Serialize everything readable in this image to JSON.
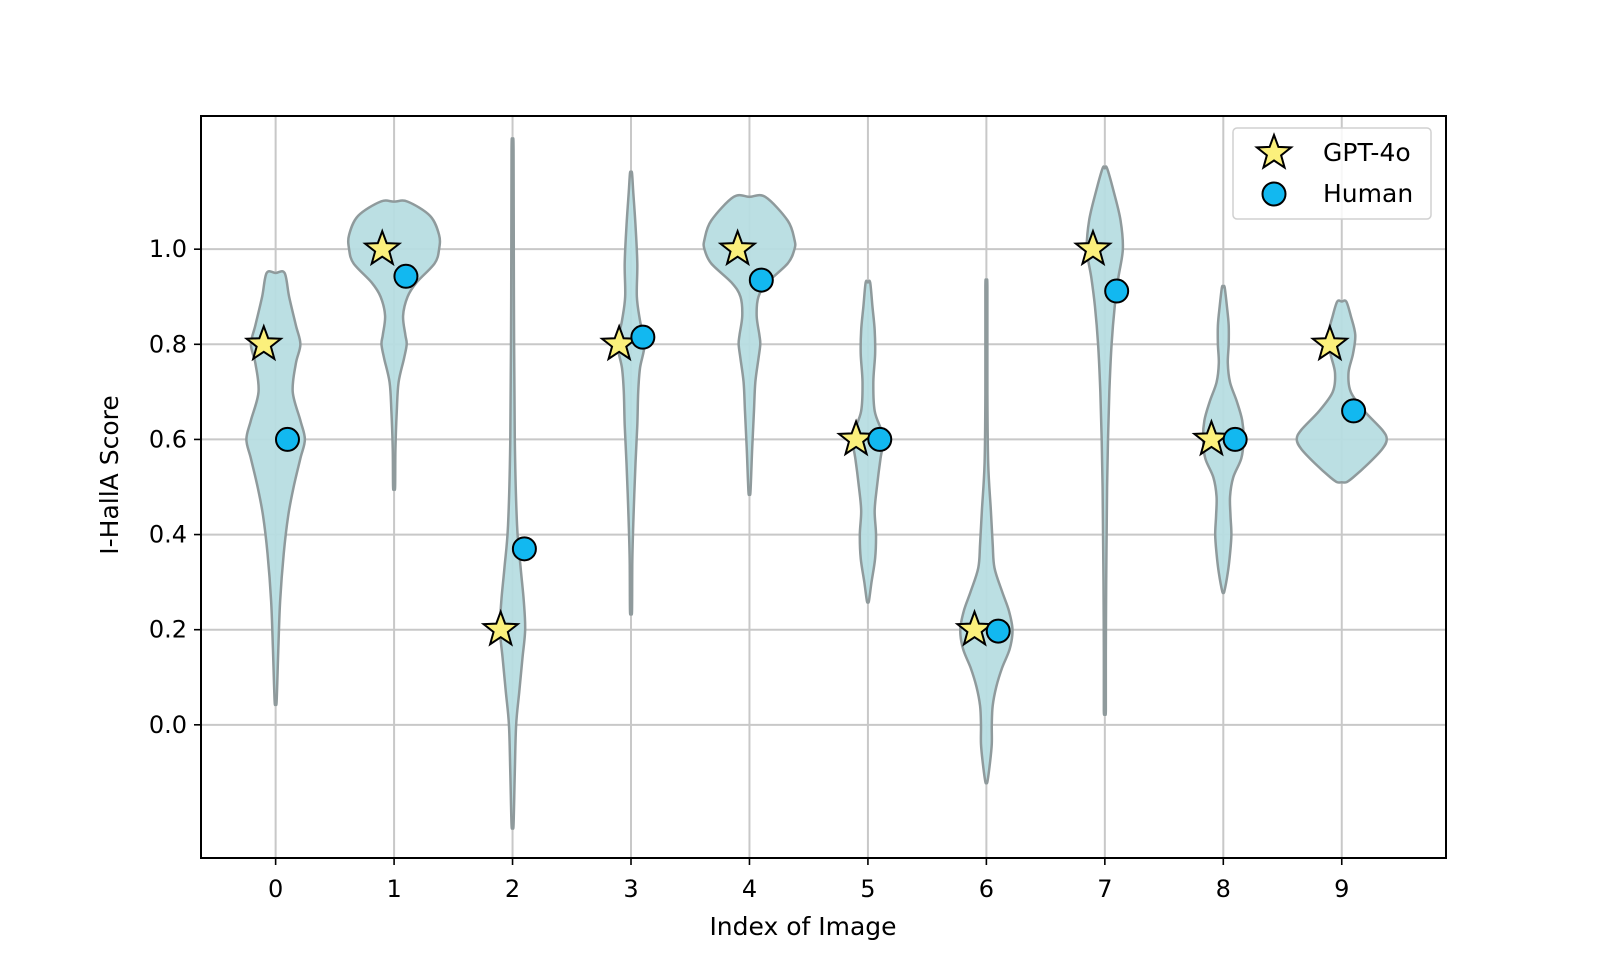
{
  "chart_data": {
    "type": "violin",
    "xlabel": "Index of Image",
    "ylabel": "I-HallA Score",
    "categories": [
      "0",
      "1",
      "2",
      "3",
      "4",
      "5",
      "6",
      "7",
      "8",
      "9"
    ],
    "x_ticks": [
      "0",
      "1",
      "2",
      "3",
      "4",
      "5",
      "6",
      "7",
      "8",
      "9"
    ],
    "y_ticks": [
      "0.0",
      "0.2",
      "0.4",
      "0.6",
      "0.8",
      "1.0"
    ],
    "y_tick_values": [
      0.0,
      0.2,
      0.4,
      0.6,
      0.8,
      1.0
    ],
    "xlim": [
      -0.63,
      9.88
    ],
    "ylim": [
      -0.28,
      1.28
    ],
    "grid": true,
    "legend_position": "top-right",
    "colors": {
      "violin_fill": "#b7dde1",
      "violin_edge": "#8f9a9c",
      "gpt_marker": "#fbf07c",
      "human_marker": "#12b8f0",
      "grid": "#c8c8c8"
    },
    "series": [
      {
        "name": "GPT-4o",
        "marker": "star",
        "values": [
          0.8,
          1.0,
          0.2,
          0.8,
          1.0,
          0.6,
          0.2,
          1.0,
          0.6,
          0.8
        ]
      },
      {
        "name": "Human",
        "marker": "circle",
        "values": [
          0.6,
          0.943,
          0.37,
          0.815,
          0.935,
          0.6,
          0.197,
          0.912,
          0.6,
          0.66
        ]
      }
    ],
    "distributions": [
      {
        "index": 0,
        "ymin": 0.05,
        "ymax": 0.95,
        "profile": [
          [
            0.95,
            0.2
          ],
          [
            0.9,
            0.3
          ],
          [
            0.84,
            0.45
          ],
          [
            0.8,
            0.55
          ],
          [
            0.76,
            0.45
          ],
          [
            0.7,
            0.38
          ],
          [
            0.64,
            0.55
          ],
          [
            0.6,
            0.65
          ],
          [
            0.56,
            0.55
          ],
          [
            0.5,
            0.4
          ],
          [
            0.44,
            0.28
          ],
          [
            0.36,
            0.18
          ],
          [
            0.26,
            0.1
          ],
          [
            0.16,
            0.06
          ],
          [
            0.05,
            0.02
          ]
        ]
      },
      {
        "index": 1,
        "ymin": 0.5,
        "ymax": 1.1,
        "profile": [
          [
            1.1,
            0.3
          ],
          [
            1.07,
            0.8
          ],
          [
            1.03,
            1.0
          ],
          [
            1.0,
            1.0
          ],
          [
            0.97,
            0.9
          ],
          [
            0.93,
            0.5
          ],
          [
            0.9,
            0.3
          ],
          [
            0.86,
            0.2
          ],
          [
            0.82,
            0.25
          ],
          [
            0.8,
            0.28
          ],
          [
            0.77,
            0.22
          ],
          [
            0.72,
            0.1
          ],
          [
            0.66,
            0.06
          ],
          [
            0.58,
            0.03
          ],
          [
            0.5,
            0.02
          ]
        ]
      },
      {
        "index": 2,
        "ymin": -0.21,
        "ymax": 1.21,
        "profile": [
          [
            1.21,
            0.02
          ],
          [
            0.9,
            0.03
          ],
          [
            0.6,
            0.05
          ],
          [
            0.42,
            0.1
          ],
          [
            0.33,
            0.18
          ],
          [
            0.26,
            0.25
          ],
          [
            0.2,
            0.28
          ],
          [
            0.14,
            0.22
          ],
          [
            0.07,
            0.15
          ],
          [
            0.0,
            0.08
          ],
          [
            -0.1,
            0.05
          ],
          [
            -0.21,
            0.02
          ]
        ]
      },
      {
        "index": 3,
        "ymin": 0.24,
        "ymax": 1.16,
        "profile": [
          [
            1.16,
            0.02
          ],
          [
            1.12,
            0.05
          ],
          [
            1.05,
            0.1
          ],
          [
            0.97,
            0.14
          ],
          [
            0.9,
            0.13
          ],
          [
            0.85,
            0.2
          ],
          [
            0.8,
            0.3
          ],
          [
            0.75,
            0.2
          ],
          [
            0.7,
            0.16
          ],
          [
            0.63,
            0.14
          ],
          [
            0.55,
            0.1
          ],
          [
            0.45,
            0.06
          ],
          [
            0.35,
            0.03
          ],
          [
            0.24,
            0.01
          ]
        ]
      },
      {
        "index": 4,
        "ymin": 0.49,
        "ymax": 1.11,
        "profile": [
          [
            1.11,
            0.35
          ],
          [
            1.06,
            0.85
          ],
          [
            1.02,
            1.0
          ],
          [
            1.0,
            1.0
          ],
          [
            0.97,
            0.85
          ],
          [
            0.93,
            0.4
          ],
          [
            0.9,
            0.2
          ],
          [
            0.86,
            0.16
          ],
          [
            0.82,
            0.22
          ],
          [
            0.8,
            0.24
          ],
          [
            0.77,
            0.2
          ],
          [
            0.72,
            0.13
          ],
          [
            0.66,
            0.1
          ],
          [
            0.58,
            0.06
          ],
          [
            0.49,
            0.02
          ]
        ]
      },
      {
        "index": 5,
        "ymin": 0.26,
        "ymax": 0.93,
        "profile": [
          [
            0.93,
            0.05
          ],
          [
            0.88,
            0.1
          ],
          [
            0.83,
            0.15
          ],
          [
            0.78,
            0.16
          ],
          [
            0.72,
            0.12
          ],
          [
            0.66,
            0.15
          ],
          [
            0.62,
            0.3
          ],
          [
            0.6,
            0.35
          ],
          [
            0.56,
            0.28
          ],
          [
            0.5,
            0.2
          ],
          [
            0.45,
            0.15
          ],
          [
            0.4,
            0.18
          ],
          [
            0.35,
            0.16
          ],
          [
            0.3,
            0.08
          ],
          [
            0.26,
            0.02
          ]
        ]
      },
      {
        "index": 6,
        "ymin": -0.12,
        "ymax": 0.92,
        "profile": [
          [
            0.92,
            0.01
          ],
          [
            0.7,
            0.02
          ],
          [
            0.55,
            0.04
          ],
          [
            0.45,
            0.1
          ],
          [
            0.38,
            0.14
          ],
          [
            0.33,
            0.18
          ],
          [
            0.28,
            0.35
          ],
          [
            0.24,
            0.5
          ],
          [
            0.2,
            0.58
          ],
          [
            0.16,
            0.52
          ],
          [
            0.12,
            0.35
          ],
          [
            0.08,
            0.22
          ],
          [
            0.04,
            0.14
          ],
          [
            0.0,
            0.12
          ],
          [
            -0.04,
            0.12
          ],
          [
            -0.08,
            0.08
          ],
          [
            -0.12,
            0.02
          ]
        ]
      },
      {
        "index": 7,
        "ymin": 0.03,
        "ymax": 1.17,
        "profile": [
          [
            1.17,
            0.05
          ],
          [
            1.12,
            0.2
          ],
          [
            1.06,
            0.35
          ],
          [
            1.0,
            0.4
          ],
          [
            0.94,
            0.3
          ],
          [
            0.88,
            0.22
          ],
          [
            0.8,
            0.15
          ],
          [
            0.7,
            0.1
          ],
          [
            0.6,
            0.07
          ],
          [
            0.5,
            0.05
          ],
          [
            0.4,
            0.04
          ],
          [
            0.3,
            0.03
          ],
          [
            0.15,
            0.02
          ],
          [
            0.03,
            0.01
          ]
        ]
      },
      {
        "index": 8,
        "ymin": 0.28,
        "ymax": 0.92,
        "profile": [
          [
            0.92,
            0.03
          ],
          [
            0.88,
            0.08
          ],
          [
            0.84,
            0.12
          ],
          [
            0.8,
            0.12
          ],
          [
            0.76,
            0.1
          ],
          [
            0.72,
            0.15
          ],
          [
            0.68,
            0.3
          ],
          [
            0.64,
            0.42
          ],
          [
            0.6,
            0.45
          ],
          [
            0.56,
            0.4
          ],
          [
            0.52,
            0.22
          ],
          [
            0.48,
            0.15
          ],
          [
            0.44,
            0.16
          ],
          [
            0.4,
            0.18
          ],
          [
            0.36,
            0.15
          ],
          [
            0.32,
            0.1
          ],
          [
            0.28,
            0.02
          ]
        ]
      },
      {
        "index": 9,
        "ymin": 0.51,
        "ymax": 0.89,
        "profile": [
          [
            0.89,
            0.1
          ],
          [
            0.86,
            0.2
          ],
          [
            0.82,
            0.3
          ],
          [
            0.78,
            0.25
          ],
          [
            0.74,
            0.15
          ],
          [
            0.7,
            0.2
          ],
          [
            0.66,
            0.5
          ],
          [
            0.62,
            0.9
          ],
          [
            0.6,
            1.0
          ],
          [
            0.58,
            0.9
          ],
          [
            0.55,
            0.6
          ],
          [
            0.52,
            0.25
          ],
          [
            0.51,
            0.1
          ]
        ]
      }
    ]
  }
}
